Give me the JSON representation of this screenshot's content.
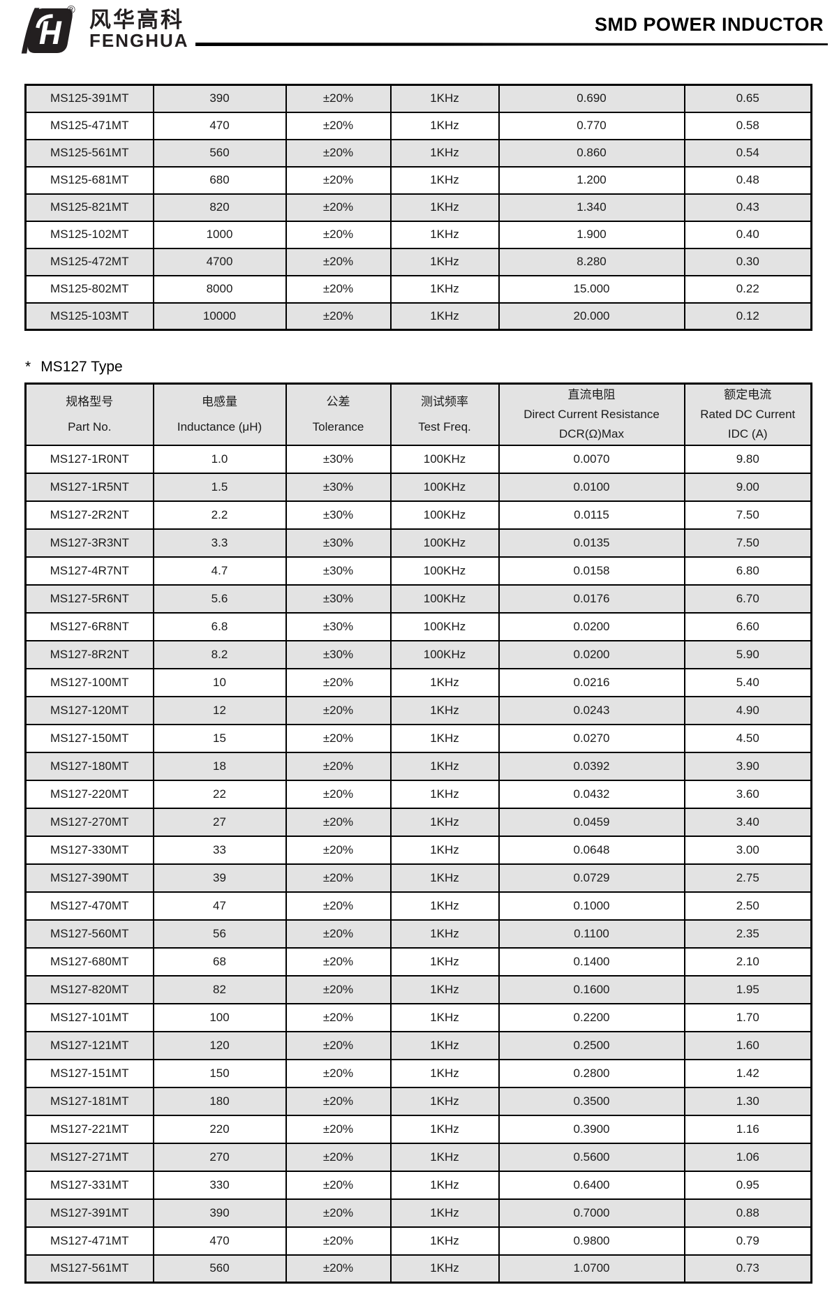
{
  "header": {
    "logo_monogram": "fH",
    "logo_registered": "®",
    "logo_cn": "风华高科",
    "logo_en": "FENGHUA",
    "title": "SMD POWER INDUCTOR"
  },
  "theme": {
    "row_shade": "#e3e3e3",
    "border_color": "#000000",
    "text_color": "#1a1a1a"
  },
  "ms125_table": {
    "rows": [
      [
        "MS125-391MT",
        "390",
        "±20%",
        "1KHz",
        "0.690",
        "0.65"
      ],
      [
        "MS125-471MT",
        "470",
        "±20%",
        "1KHz",
        "0.770",
        "0.58"
      ],
      [
        "MS125-561MT",
        "560",
        "±20%",
        "1KHz",
        "0.860",
        "0.54"
      ],
      [
        "MS125-681MT",
        "680",
        "±20%",
        "1KHz",
        "1.200",
        "0.48"
      ],
      [
        "MS125-821MT",
        "820",
        "±20%",
        "1KHz",
        "1.340",
        "0.43"
      ],
      [
        "MS125-102MT",
        "1000",
        "±20%",
        "1KHz",
        "1.900",
        "0.40"
      ],
      [
        "MS125-472MT",
        "4700",
        "±20%",
        "1KHz",
        "8.280",
        "0.30"
      ],
      [
        "MS125-802MT",
        "8000",
        "±20%",
        "1KHz",
        "15.000",
        "0.22"
      ],
      [
        "MS125-103MT",
        "10000",
        "±20%",
        "1KHz",
        "20.000",
        "0.12"
      ]
    ]
  },
  "section2": {
    "bullet": "*",
    "heading": "MS127 Type"
  },
  "ms127_table": {
    "columns": [
      {
        "cn": "规格型号",
        "en": "Part No.",
        "unit": ""
      },
      {
        "cn": "电感量",
        "en": "Inductance (μH)",
        "unit": ""
      },
      {
        "cn": "公差",
        "en": "Tolerance",
        "unit": ""
      },
      {
        "cn": "测试频率",
        "en": "Test Freq.",
        "unit": ""
      },
      {
        "cn": "直流电阻",
        "en": "Direct Current Resistance",
        "unit": "DCR(Ω)Max"
      },
      {
        "cn": "额定电流",
        "en": "Rated DC Current",
        "unit": "IDC (A)"
      }
    ],
    "rows": [
      [
        "MS127-1R0NT",
        "1.0",
        "±30%",
        "100KHz",
        "0.0070",
        "9.80"
      ],
      [
        "MS127-1R5NT",
        "1.5",
        "±30%",
        "100KHz",
        "0.0100",
        "9.00"
      ],
      [
        "MS127-2R2NT",
        "2.2",
        "±30%",
        "100KHz",
        "0.0115",
        "7.50"
      ],
      [
        "MS127-3R3NT",
        "3.3",
        "±30%",
        "100KHz",
        "0.0135",
        "7.50"
      ],
      [
        "MS127-4R7NT",
        "4.7",
        "±30%",
        "100KHz",
        "0.0158",
        "6.80"
      ],
      [
        "MS127-5R6NT",
        "5.6",
        "±30%",
        "100KHz",
        "0.0176",
        "6.70"
      ],
      [
        "MS127-6R8NT",
        "6.8",
        "±30%",
        "100KHz",
        "0.0200",
        "6.60"
      ],
      [
        "MS127-8R2NT",
        "8.2",
        "±30%",
        "100KHz",
        "0.0200",
        "5.90"
      ],
      [
        "MS127-100MT",
        "10",
        "±20%",
        "1KHz",
        "0.0216",
        "5.40"
      ],
      [
        "MS127-120MT",
        "12",
        "±20%",
        "1KHz",
        "0.0243",
        "4.90"
      ],
      [
        "MS127-150MT",
        "15",
        "±20%",
        "1KHz",
        "0.0270",
        "4.50"
      ],
      [
        "MS127-180MT",
        "18",
        "±20%",
        "1KHz",
        "0.0392",
        "3.90"
      ],
      [
        "MS127-220MT",
        "22",
        "±20%",
        "1KHz",
        "0.0432",
        "3.60"
      ],
      [
        "MS127-270MT",
        "27",
        "±20%",
        "1KHz",
        "0.0459",
        "3.40"
      ],
      [
        "MS127-330MT",
        "33",
        "±20%",
        "1KHz",
        "0.0648",
        "3.00"
      ],
      [
        "MS127-390MT",
        "39",
        "±20%",
        "1KHz",
        "0.0729",
        "2.75"
      ],
      [
        "MS127-470MT",
        "47",
        "±20%",
        "1KHz",
        "0.1000",
        "2.50"
      ],
      [
        "MS127-560MT",
        "56",
        "±20%",
        "1KHz",
        "0.1100",
        "2.35"
      ],
      [
        "MS127-680MT",
        "68",
        "±20%",
        "1KHz",
        "0.1400",
        "2.10"
      ],
      [
        "MS127-820MT",
        "82",
        "±20%",
        "1KHz",
        "0.1600",
        "1.95"
      ],
      [
        "MS127-101MT",
        "100",
        "±20%",
        "1KHz",
        "0.2200",
        "1.70"
      ],
      [
        "MS127-121MT",
        "120",
        "±20%",
        "1KHz",
        "0.2500",
        "1.60"
      ],
      [
        "MS127-151MT",
        "150",
        "±20%",
        "1KHz",
        "0.2800",
        "1.42"
      ],
      [
        "MS127-181MT",
        "180",
        "±20%",
        "1KHz",
        "0.3500",
        "1.30"
      ],
      [
        "MS127-221MT",
        "220",
        "±20%",
        "1KHz",
        "0.3900",
        "1.16"
      ],
      [
        "MS127-271MT",
        "270",
        "±20%",
        "1KHz",
        "0.5600",
        "1.06"
      ],
      [
        "MS127-331MT",
        "330",
        "±20%",
        "1KHz",
        "0.6400",
        "0.95"
      ],
      [
        "MS127-391MT",
        "390",
        "±20%",
        "1KHz",
        "0.7000",
        "0.88"
      ],
      [
        "MS127-471MT",
        "470",
        "±20%",
        "1KHz",
        "0.9800",
        "0.79"
      ],
      [
        "MS127-561MT",
        "560",
        "±20%",
        "1KHz",
        "1.0700",
        "0.73"
      ]
    ]
  }
}
